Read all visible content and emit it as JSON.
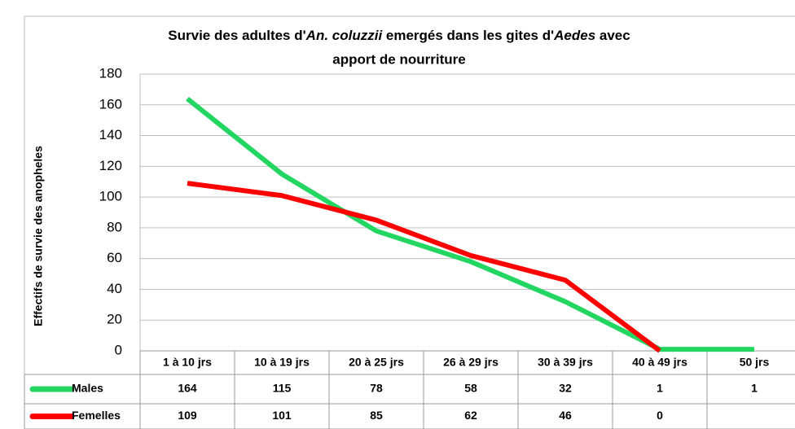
{
  "chart_data": {
    "type": "line",
    "title": {
      "line1": [
        "Survie des  adultes d'",
        "An. coluzzii",
        " emergés dans les gites d'",
        "Aedes",
        " avec"
      ],
      "line2": "apport de  nourriture"
    },
    "y_label": "Effectifs de survie des anopheles",
    "categories": [
      "1 à 10 jrs",
      "10 à 19 jrs",
      "20 à 25 jrs",
      "26 à 29 jrs",
      "30 à 39 jrs",
      "40 à 49 jrs",
      "50 jrs"
    ],
    "series": [
      {
        "name": "Males",
        "color": "#22d661",
        "values": [
          164,
          115,
          78,
          58,
          32,
          1,
          1
        ]
      },
      {
        "name": "Femelles",
        "color": "#ff0000",
        "values": [
          109,
          101,
          85,
          62,
          46,
          0,
          null
        ]
      }
    ],
    "ylim": [
      0,
      180
    ],
    "yticks": [
      0,
      20,
      40,
      60,
      80,
      100,
      120,
      140,
      160,
      180
    ],
    "grid": true
  }
}
